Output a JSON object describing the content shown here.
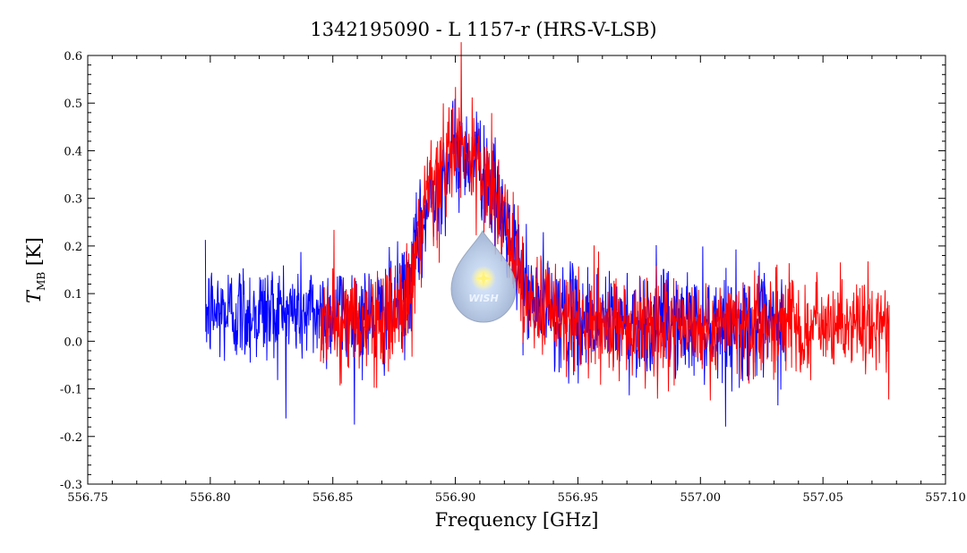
{
  "chart_data": {
    "type": "line",
    "title": "1342195090 - L 1157-r (HRS-V-LSB)",
    "xlabel": "Frequency [GHz]",
    "ylabel_main": "T",
    "ylabel_sub": "MB",
    "ylabel_unit": "[K]",
    "xlim": [
      556.75,
      557.1
    ],
    "ylim": [
      -0.3,
      0.6
    ],
    "x_ticks": [
      "556.75",
      "556.80",
      "556.85",
      "556.90",
      "556.95",
      "557.00",
      "557.05",
      "557.10"
    ],
    "y_ticks": [
      "-0.3",
      "-0.2",
      "-0.1",
      "0.0",
      "0.1",
      "0.2",
      "0.3",
      "0.4",
      "0.5",
      "0.6"
    ],
    "grid": false,
    "logo_text": "WISH",
    "series": [
      {
        "color": "#0000ff",
        "x_range": [
          556.798,
          557.035
        ],
        "profile": [
          [
            556.798,
            0.06
          ],
          [
            556.83,
            0.06
          ],
          [
            556.85,
            0.06
          ],
          [
            556.87,
            0.05
          ],
          [
            556.88,
            0.1
          ],
          [
            556.89,
            0.3
          ],
          [
            556.9,
            0.4
          ],
          [
            556.91,
            0.38
          ],
          [
            556.92,
            0.25
          ],
          [
            556.93,
            0.09
          ],
          [
            556.95,
            0.04
          ],
          [
            557.035,
            0.03
          ]
        ],
        "noise": 0.055
      },
      {
        "color": "#ff0000",
        "x_range": [
          556.845,
          557.077
        ],
        "profile": [
          [
            556.845,
            0.04
          ],
          [
            556.87,
            0.04
          ],
          [
            556.88,
            0.08
          ],
          [
            556.89,
            0.3
          ],
          [
            556.9,
            0.42
          ],
          [
            556.91,
            0.36
          ],
          [
            556.92,
            0.25
          ],
          [
            556.93,
            0.08
          ],
          [
            556.95,
            0.03
          ],
          [
            557.077,
            0.03
          ]
        ],
        "noise": 0.055
      }
    ]
  }
}
